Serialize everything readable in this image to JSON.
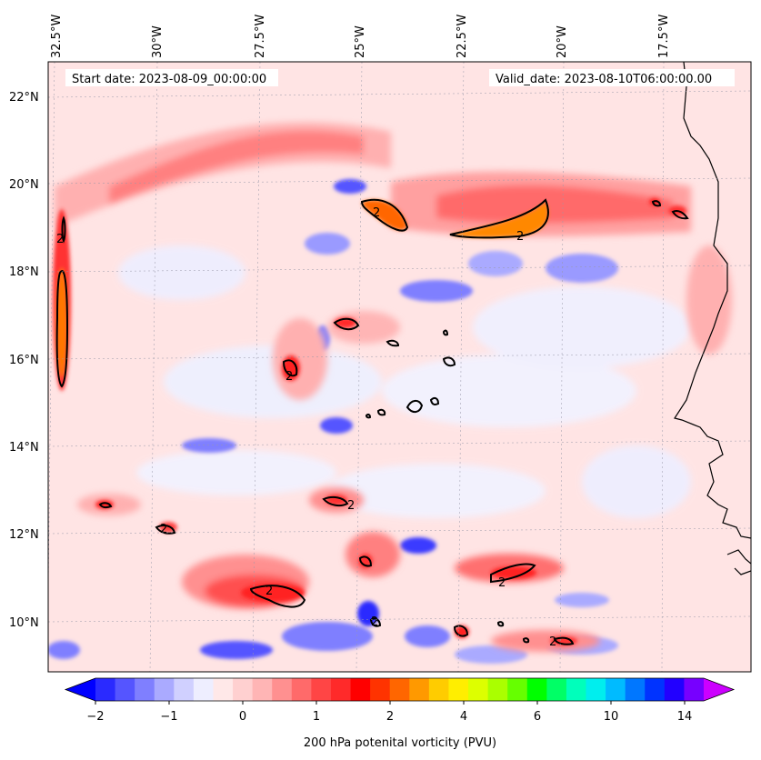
{
  "map": {
    "start_date_label": "Start date: 2023-08-09_00:00:00",
    "valid_date_label": "Valid_date: 2023-08-10T06:00:00.00",
    "lon_labels": [
      "32.5°W",
      "30°W",
      "27.5°W",
      "25°W",
      "22.5°W",
      "20°W",
      "17.5°W"
    ],
    "lat_labels": [
      "22°N",
      "20°N",
      "18°N",
      "16°N",
      "14°N",
      "12°N",
      "10°N"
    ],
    "contour_label": "2",
    "coastline_color": "#000000",
    "background_color": "#ffe2e2"
  },
  "colorbar": {
    "title": "200 hPa potenital vorticity (PVU)",
    "ticks": [
      "−2",
      "−1",
      "0",
      "1",
      "2",
      "4",
      "6",
      "10",
      "14"
    ],
    "colors": [
      "#0000ff",
      "#2a2aff",
      "#5555ff",
      "#7f7fff",
      "#aaaaff",
      "#d0d0ff",
      "#eeeeff",
      "#ffe8e8",
      "#ffd0d0",
      "#ffb5b5",
      "#ff9090",
      "#ff6a6a",
      "#ff4545",
      "#ff2a2a",
      "#ff0000",
      "#ff3300",
      "#ff6600",
      "#ff9900",
      "#ffcc00",
      "#ffee00",
      "#ddff00",
      "#aaff00",
      "#66ff00",
      "#00ff00",
      "#00ff66",
      "#00ffbb",
      "#00eeee",
      "#00bbff",
      "#0077ff",
      "#0033ff",
      "#2200ff",
      "#7700ff",
      "#cc00ff"
    ]
  }
}
